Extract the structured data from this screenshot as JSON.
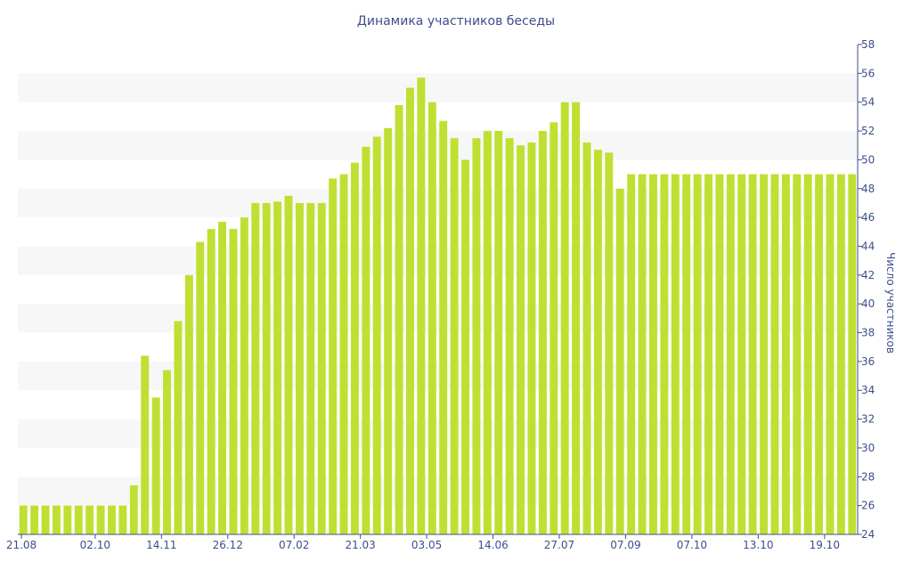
{
  "chart_data": {
    "type": "bar",
    "title": "Динамика участников беседы",
    "xlabel": "",
    "ylabel": "Число участников",
    "ylim": [
      24,
      58
    ],
    "y_ticks": [
      24,
      26,
      28,
      30,
      32,
      34,
      36,
      38,
      40,
      42,
      44,
      46,
      48,
      50,
      52,
      54,
      56,
      58
    ],
    "x_tick_labels": [
      "21.08",
      "02.10",
      "14.11",
      "26.12",
      "07.02",
      "21.03",
      "03.05",
      "14.06",
      "27.07",
      "07.09",
      "07.10",
      "13.10",
      "19.10"
    ],
    "x_tick_positions": [
      0,
      6.5,
      12.5,
      18.5,
      24.5,
      30.5,
      36.5,
      42.5,
      48.5,
      54.5,
      60.5,
      66.5,
      72.5
    ],
    "bar_color": "#bfe032",
    "band_color": "#f7f7f7",
    "axis_color": "#3d4e8a",
    "grid_bands": true,
    "values": [
      26,
      26,
      26,
      26,
      26,
      26,
      26,
      26,
      26,
      26,
      27.4,
      36.4,
      33.5,
      35.4,
      38.8,
      42,
      44.3,
      45.2,
      45.7,
      45.2,
      46,
      47,
      47,
      47.1,
      47.5,
      47,
      47,
      47,
      48.7,
      49,
      49.8,
      50.9,
      51.6,
      52.2,
      53.8,
      55,
      55.7,
      54,
      52.7,
      51.5,
      50,
      51.5,
      52,
      52,
      51.5,
      51,
      51.2,
      52,
      52.6,
      54,
      54,
      51.2,
      50.7,
      50.5,
      48,
      49,
      49,
      49,
      49,
      49,
      49,
      49,
      49,
      49,
      49,
      49,
      49,
      49,
      49,
      49,
      49,
      49,
      49,
      49,
      49,
      49
    ]
  }
}
